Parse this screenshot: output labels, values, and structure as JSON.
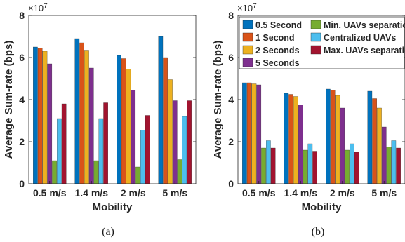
{
  "captions": [
    "(a)",
    "(b)"
  ],
  "legend": [
    {
      "label": "0.5 Second",
      "color": "#0072BD"
    },
    {
      "label": "1 Second",
      "color": "#D95319"
    },
    {
      "label": "2 Seconds",
      "color": "#EDB120"
    },
    {
      "label": "5 Seconds",
      "color": "#7E2F8E"
    },
    {
      "label": "Min. UAVs separation",
      "color": "#77AC30"
    },
    {
      "label": "Centralized UAVs",
      "color": "#4DBEEE"
    },
    {
      "label": "Max. UAVs separation",
      "color": "#A2142F"
    }
  ],
  "chart_data": [
    {
      "type": "bar",
      "panel": "(a)",
      "xlabel": "Mobility",
      "ylabel": "Average Sum-rate (bps)",
      "y_multiplier": "×10",
      "y_multiplier_exp": "7",
      "ylim": [
        0,
        8
      ],
      "yticks": [
        "0",
        "2",
        "4",
        "6",
        "8"
      ],
      "categories": [
        "0.5 m/s",
        "1.4 m/s",
        "2 m/s",
        "5 m/s"
      ],
      "grid": false,
      "series": [
        {
          "name": "0.5 Second",
          "values": [
            6.5,
            6.9,
            6.1,
            7.0
          ]
        },
        {
          "name": "1 Second",
          "values": [
            6.45,
            6.7,
            5.95,
            6.0
          ]
        },
        {
          "name": "2 Seconds",
          "values": [
            6.3,
            6.35,
            5.45,
            4.95
          ]
        },
        {
          "name": "5 Seconds",
          "values": [
            5.7,
            5.5,
            4.45,
            3.95
          ]
        },
        {
          "name": "Min. UAVs separation",
          "values": [
            1.1,
            1.1,
            0.8,
            1.15
          ]
        },
        {
          "name": "Centralized UAVs",
          "values": [
            3.1,
            3.1,
            2.55,
            3.2
          ]
        },
        {
          "name": "Max. UAVs separation",
          "values": [
            3.8,
            3.85,
            3.25,
            3.95
          ]
        }
      ]
    },
    {
      "type": "bar",
      "panel": "(b)",
      "xlabel": "Mobility",
      "ylabel": "Average Sum-rate (bps)",
      "y_multiplier": "×10",
      "y_multiplier_exp": "7",
      "ylim": [
        0,
        8
      ],
      "yticks": [
        "0",
        "2",
        "4",
        "6",
        "8"
      ],
      "categories": [
        "0.5 m/s",
        "1.4 m/s",
        "2 m/s",
        "5 m/s"
      ],
      "grid": false,
      "legend_position": "top-right",
      "series": [
        {
          "name": "0.5 Second",
          "values": [
            4.8,
            4.3,
            4.5,
            4.4
          ]
        },
        {
          "name": "1 Second",
          "values": [
            4.8,
            4.25,
            4.45,
            4.05
          ]
        },
        {
          "name": "2 Seconds",
          "values": [
            4.75,
            4.15,
            4.2,
            3.6
          ]
        },
        {
          "name": "5 Seconds",
          "values": [
            4.7,
            3.75,
            3.6,
            2.7
          ]
        },
        {
          "name": "Min. UAVs separation",
          "values": [
            1.7,
            1.6,
            1.6,
            1.75
          ]
        },
        {
          "name": "Centralized UAVs",
          "values": [
            2.05,
            1.9,
            1.9,
            2.05
          ]
        },
        {
          "name": "Max. UAVs separation",
          "values": [
            1.7,
            1.55,
            1.5,
            1.7
          ]
        }
      ]
    }
  ]
}
